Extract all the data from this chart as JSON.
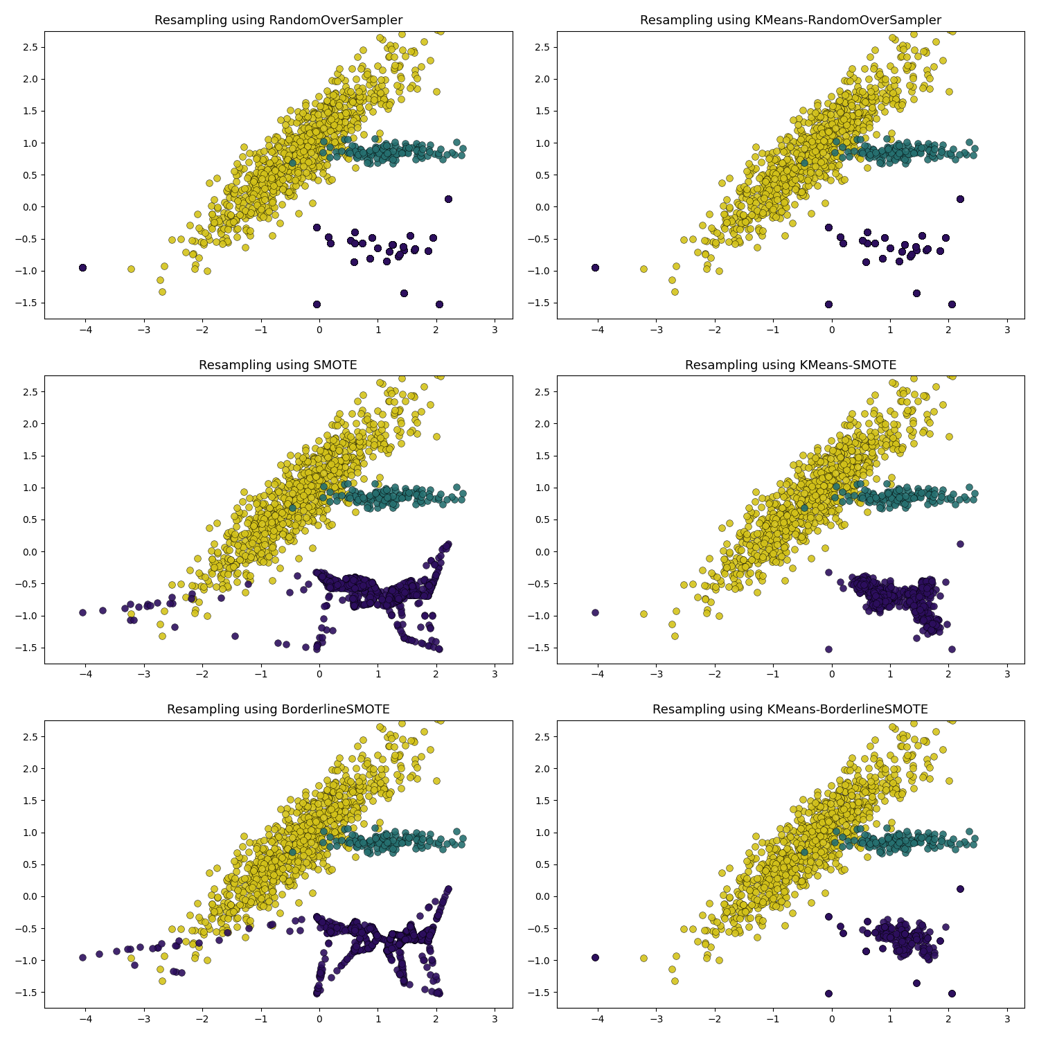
{
  "titles": [
    "Resampling using RandomOverSampler",
    "Resampling using KMeans-RandomOverSampler",
    "Resampling using SMOTE",
    "Resampling using KMeans-SMOTE",
    "Resampling using BorderlineSMOTE",
    "Resampling using KMeans-BorderlineSMOTE"
  ],
  "colors": {
    "yellow": "#d4c31a",
    "teal": "#267070",
    "purple": "#2d0f5e"
  },
  "xlim": [
    -4.7,
    3.3
  ],
  "ylim": [
    -1.75,
    2.75
  ],
  "figsize": [
    15,
    15
  ],
  "dpi": 100,
  "marker_size": 50,
  "alpha": 0.9,
  "lw": 0.35,
  "title_fontsize": 13,
  "seed_yellow": 42,
  "seed_teal": 43,
  "seed_purple": 44
}
